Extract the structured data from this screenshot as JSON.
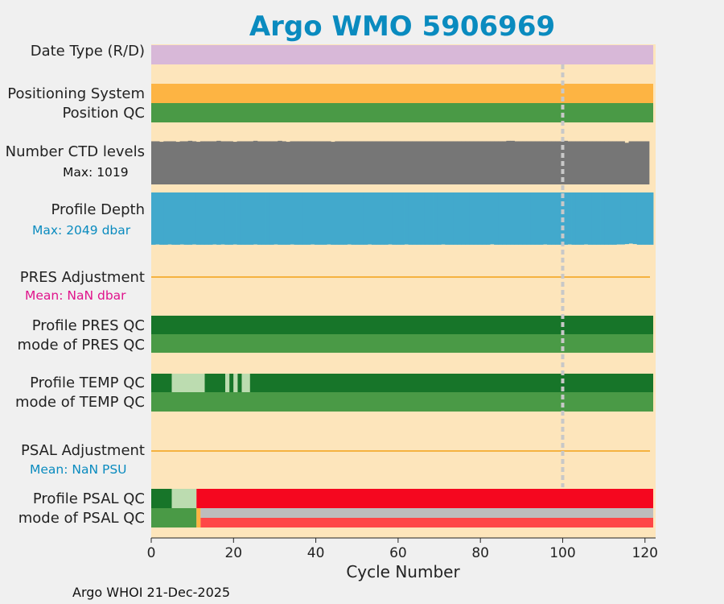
{
  "page": {
    "title": "Argo WMO 5906969",
    "footer": "Argo WHOI 21-Dec-2025"
  },
  "colors": {
    "title": "#0a8bbf",
    "panel_bg": "#fde5bb",
    "date_type": "#d8b8d8",
    "positioning": "#fdb443",
    "qc_good": "#4a9a46",
    "qc_dark": "#177529",
    "qc_light": "#bcdcb0",
    "ctd": "#767676",
    "depth": "#42a9cc",
    "adj_line": "#f5b240",
    "pres_mean": "#e0148c",
    "psal_mean": "#0a8bbf",
    "psal_bad": "#f5071f",
    "psal_bad2": "#fe4747",
    "psal_gray": "#bdbdbd",
    "marker": "#c8c8c8"
  },
  "rows": {
    "date_type": "Date Type (R/D)",
    "positioning": "Positioning System",
    "position_qc": "Position QC",
    "ctd_levels": "Number CTD levels",
    "ctd_max": "Max: 1019",
    "profile_depth": "Profile Depth",
    "depth_max": "Max: 2049 dbar",
    "pres_adj": "PRES Adjustment",
    "pres_mean": "Mean:  NaN dbar",
    "prof_pres_qc": "Profile PRES QC",
    "mode_pres_qc": "mode of PRES QC",
    "prof_temp_qc": "Profile TEMP QC",
    "mode_temp_qc": "mode of TEMP QC",
    "psal_adj": "PSAL Adjustment",
    "psal_mean": "Mean:  NaN PSU",
    "prof_psal_qc": "Profile PSAL QC",
    "mode_psal_qc": "mode of PSAL QC"
  },
  "chart_data": {
    "type": "bar",
    "xlabel": "Cycle Number",
    "xlim": [
      0,
      122.5
    ],
    "xticks": [
      0,
      20,
      40,
      60,
      80,
      100,
      120
    ],
    "reference_cycle": 100,
    "cycles_first": 0,
    "cycles_last": 122,
    "ctd_levels_max": 1019,
    "ctd_levels": [
      880,
      880,
      870,
      880,
      880,
      880,
      870,
      880,
      880,
      890,
      880,
      870,
      880,
      880,
      880,
      880,
      890,
      880,
      880,
      880,
      870,
      880,
      880,
      880,
      880,
      890,
      880,
      880,
      880,
      880,
      880,
      890,
      880,
      870,
      880,
      880,
      880,
      880,
      880,
      880,
      880,
      880,
      880,
      880,
      870,
      880,
      880,
      880,
      880,
      880,
      880,
      880,
      880,
      880,
      880,
      880,
      880,
      880,
      880,
      880,
      880,
      880,
      880,
      880,
      880,
      880,
      880,
      880,
      880,
      880,
      880,
      880,
      880,
      880,
      880,
      880,
      880,
      880,
      880,
      880,
      880,
      880,
      880,
      880,
      880,
      880,
      880,
      890,
      890,
      880,
      880,
      880,
      880,
      880,
      880,
      880,
      880,
      880,
      880,
      880,
      880,
      890,
      880,
      880,
      880,
      880,
      880,
      880,
      880,
      880,
      880,
      880,
      880,
      880,
      880,
      880,
      850,
      880,
      880,
      880,
      880,
      880
    ],
    "depth_max": 2049,
    "profile_depth": [
      2015,
      2005,
      2015,
      2015,
      2005,
      2015,
      2015,
      2005,
      2015,
      2015,
      2005,
      2015,
      2015,
      2015,
      2015,
      2005,
      2015,
      2005,
      2015,
      2015,
      2005,
      2015,
      2015,
      2015,
      2015,
      2005,
      2015,
      2015,
      2015,
      2015,
      2005,
      2015,
      2015,
      2015,
      2005,
      2015,
      2015,
      2015,
      2015,
      2005,
      2015,
      2015,
      2015,
      2005,
      2015,
      2015,
      2015,
      2015,
      2005,
      2015,
      2015,
      2015,
      2015,
      2005,
      2015,
      2015,
      2015,
      2015,
      2005,
      2015,
      2015,
      2015,
      2005,
      2015,
      2015,
      2015,
      2015,
      2015,
      2015,
      2015,
      2015,
      2005,
      2015,
      2015,
      2015,
      2015,
      2015,
      2015,
      2015,
      2015,
      2015,
      2015,
      2015,
      2000,
      2015,
      2015,
      2015,
      2015,
      2015,
      2015,
      2015,
      2015,
      2015,
      2015,
      2015,
      2015,
      2005,
      2015,
      2015,
      2015,
      2015,
      2015,
      2005,
      2015,
      2015,
      2015,
      2005,
      2015,
      2015,
      2015,
      2015,
      2015,
      2015,
      2015,
      2005,
      2005,
      1990,
      1970,
      1990,
      2015,
      2015,
      2015,
      2015
    ],
    "date_type": [
      {
        "start": 0,
        "end": 122,
        "code": "date_type"
      }
    ],
    "positioning": [
      {
        "start": 0,
        "end": 122,
        "code": "positioning"
      }
    ],
    "position_qc": [
      {
        "start": 0,
        "end": 122,
        "code": "qc_good"
      }
    ],
    "pres_adjustment_mean": "NaN",
    "psal_adjustment_mean": "NaN",
    "profile_pres_qc": [
      {
        "start": 0,
        "end": 122,
        "code": "qc_dark"
      }
    ],
    "mode_pres_qc": [
      {
        "start": 0,
        "end": 122,
        "code": "qc_good"
      }
    ],
    "profile_temp_qc": [
      {
        "start": 0,
        "end": 5,
        "code": "qc_dark"
      },
      {
        "start": 5,
        "end": 13,
        "code": "qc_light"
      },
      {
        "start": 13,
        "end": 18,
        "code": "qc_dark"
      },
      {
        "start": 18,
        "end": 19,
        "code": "qc_light"
      },
      {
        "start": 19,
        "end": 20,
        "code": "qc_dark"
      },
      {
        "start": 20,
        "end": 21,
        "code": "qc_light"
      },
      {
        "start": 21,
        "end": 22,
        "code": "qc_dark"
      },
      {
        "start": 22,
        "end": 24,
        "code": "qc_light"
      },
      {
        "start": 24,
        "end": 122,
        "code": "qc_dark"
      }
    ],
    "mode_temp_qc": [
      {
        "start": 0,
        "end": 122,
        "code": "qc_good"
      }
    ],
    "profile_psal_qc": [
      {
        "start": 0,
        "end": 5,
        "code": "qc_dark"
      },
      {
        "start": 5,
        "end": 11,
        "code": "qc_light"
      },
      {
        "start": 11,
        "end": 122,
        "code": "psal_bad"
      }
    ],
    "mode_psal_qc": [
      {
        "start": 0,
        "end": 11,
        "code": "qc_good"
      },
      {
        "start": 11,
        "end": 12,
        "code": "positioning"
      },
      {
        "start": 12,
        "end": 122,
        "code": "psal_split"
      }
    ]
  }
}
